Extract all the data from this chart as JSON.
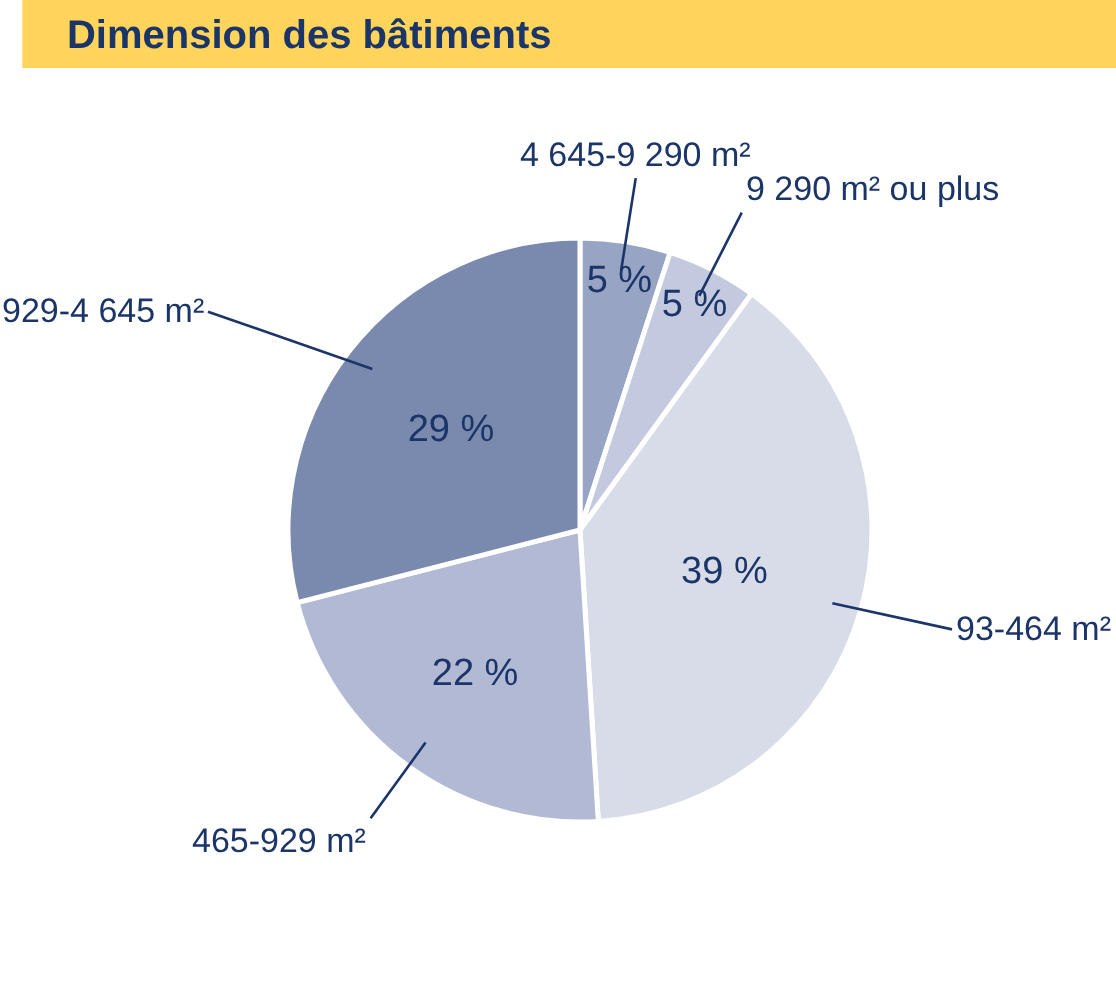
{
  "chart_data": {
    "type": "pie",
    "title": "Dimension des bâtiments",
    "categories": [
      "4 645-9 290 m²",
      "9 290 m² ou plus",
      "93-464 m²",
      "465-929 m²",
      "929-4 645 m²"
    ],
    "values": [
      5,
      5,
      39,
      22,
      29
    ],
    "value_labels": [
      "5 %",
      "5 %",
      "39 %",
      "22 %",
      "29 %"
    ],
    "colors": [
      "#98a4c3",
      "#c3c9de",
      "#d8dce9",
      "#b2b9d4",
      "#7a8aae"
    ]
  }
}
